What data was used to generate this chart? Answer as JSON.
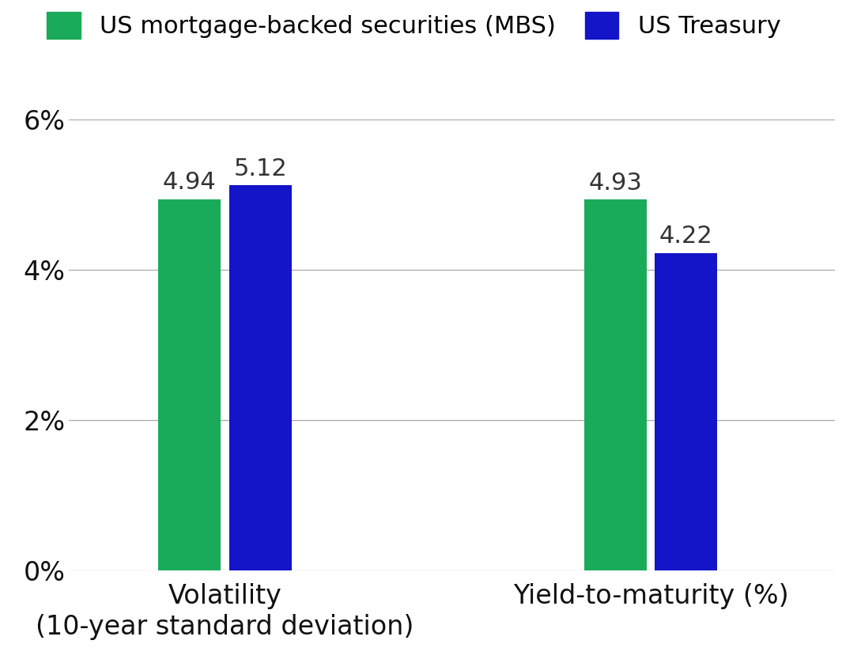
{
  "categories": [
    "Volatility\n(10-year standard deviation)",
    "Yield-to-maturity (%)"
  ],
  "mbs_values": [
    4.94,
    4.93
  ],
  "treasury_values": [
    5.12,
    4.22
  ],
  "mbs_color": "#1aab5a",
  "treasury_color": "#1414c8",
  "mbs_label": "US mortgage-backed securities (MBS)",
  "treasury_label": "US Treasury",
  "ylim": [
    0,
    6.0
  ],
  "yticks": [
    0,
    2,
    4,
    6
  ],
  "ytick_labels": [
    "0%",
    "2%",
    "4%",
    "6%"
  ],
  "bar_width": 0.22,
  "group_positions": [
    1.0,
    2.5
  ],
  "background_color": "#ffffff",
  "tick_fontsize": 24,
  "annotation_fontsize": 22,
  "legend_fontsize": 22,
  "xlim": [
    0.45,
    3.15
  ]
}
